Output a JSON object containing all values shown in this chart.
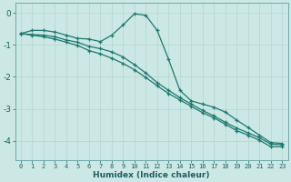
{
  "xlabel": "Humidex (Indice chaleur)",
  "background_color": "#cce8e4",
  "grid_color": "#b8d8d4",
  "line_color": "#1a7a6e",
  "xlim": [
    -0.5,
    23.5
  ],
  "ylim": [
    -4.6,
    0.3
  ],
  "yticks": [
    0,
    -1,
    -2,
    -3,
    -4
  ],
  "xticks": [
    0,
    1,
    2,
    3,
    4,
    5,
    6,
    7,
    8,
    9,
    10,
    11,
    12,
    13,
    14,
    15,
    16,
    17,
    18,
    19,
    20,
    21,
    22,
    23
  ],
  "x": [
    0,
    1,
    2,
    3,
    4,
    5,
    6,
    7,
    8,
    9,
    10,
    11,
    12,
    13,
    14,
    15,
    16,
    17,
    18,
    19,
    20,
    21,
    22,
    23
  ],
  "line1": [
    -0.65,
    -0.55,
    -0.55,
    -0.6,
    -0.7,
    -0.8,
    -0.82,
    -0.9,
    -0.7,
    -0.38,
    -0.03,
    -0.08,
    -0.55,
    -1.45,
    -2.42,
    -2.75,
    -2.85,
    -2.95,
    -3.1,
    -3.35,
    -3.58,
    -3.82,
    -4.05,
    -4.08
  ],
  "line2": [
    -0.65,
    -0.68,
    -0.7,
    -0.75,
    -0.85,
    -0.92,
    -1.05,
    -1.12,
    -1.22,
    -1.38,
    -1.62,
    -1.88,
    -2.18,
    -2.42,
    -2.65,
    -2.85,
    -3.05,
    -3.22,
    -3.42,
    -3.6,
    -3.75,
    -3.9,
    -4.1,
    -4.12
  ],
  "line3": [
    -0.65,
    -0.7,
    -0.75,
    -0.82,
    -0.92,
    -1.02,
    -1.18,
    -1.28,
    -1.42,
    -1.58,
    -1.78,
    -2.02,
    -2.28,
    -2.52,
    -2.72,
    -2.92,
    -3.12,
    -3.28,
    -3.48,
    -3.68,
    -3.82,
    -3.98,
    -4.18,
    -4.18
  ]
}
